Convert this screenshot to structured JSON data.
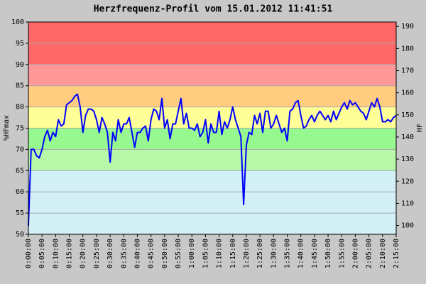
{
  "chart_data": {
    "type": "line",
    "title": "Herzfrequenz-Profil vom 15.01.2012 11:41:51",
    "ylabel": "%HFmax",
    "y2label": "HF",
    "xlim": [
      0,
      135
    ],
    "ylim": [
      50,
      100
    ],
    "y2lim": [
      96,
      192
    ],
    "yticks": [
      50,
      55,
      60,
      65,
      70,
      75,
      80,
      85,
      90,
      95,
      100
    ],
    "y2ticks": [
      100,
      110,
      120,
      130,
      140,
      150,
      160,
      170,
      180,
      190
    ],
    "grid": true,
    "zones": [
      {
        "from": 50,
        "to": 65,
        "color": "#d2f0f6"
      },
      {
        "from": 65,
        "to": 70,
        "color": "#b6f8a8"
      },
      {
        "from": 70,
        "to": 75,
        "color": "#98f890"
      },
      {
        "from": 75,
        "to": 80,
        "color": "#ffff98"
      },
      {
        "from": 80,
        "to": 85,
        "color": "#ffcc80"
      },
      {
        "from": 85,
        "to": 90,
        "color": "#ff9898"
      },
      {
        "from": 90,
        "to": 100,
        "color": "#ff6868"
      }
    ],
    "xticks": [
      {
        "value": 0,
        "label": "0:00:00"
      },
      {
        "value": 5,
        "label": "0:05:00"
      },
      {
        "value": 10,
        "label": "0:10:00"
      },
      {
        "value": 15,
        "label": "0:15:00"
      },
      {
        "value": 20,
        "label": "0:20:00"
      },
      {
        "value": 25,
        "label": "0:25:00"
      },
      {
        "value": 30,
        "label": "0:30:00"
      },
      {
        "value": 35,
        "label": "0:35:00"
      },
      {
        "value": 40,
        "label": "0:40:00"
      },
      {
        "value": 45,
        "label": "0:45:00"
      },
      {
        "value": 50,
        "label": "0:50:00"
      },
      {
        "value": 55,
        "label": "0:55:00"
      },
      {
        "value": 60,
        "label": "1:00:00"
      },
      {
        "value": 65,
        "label": "1:05:00"
      },
      {
        "value": 70,
        "label": "1:10:00"
      },
      {
        "value": 75,
        "label": "1:15:00"
      },
      {
        "value": 80,
        "label": "1:20:00"
      },
      {
        "value": 85,
        "label": "1:25:00"
      },
      {
        "value": 90,
        "label": "1:30:00"
      },
      {
        "value": 95,
        "label": "1:35:00"
      },
      {
        "value": 100,
        "label": "1:40:00"
      },
      {
        "value": 105,
        "label": "1:45:00"
      },
      {
        "value": 110,
        "label": "1:50:00"
      },
      {
        "value": 115,
        "label": "1:55:00"
      },
      {
        "value": 120,
        "label": "2:00:00"
      },
      {
        "value": 125,
        "label": "2:05:00"
      },
      {
        "value": 130,
        "label": "2:10:00"
      },
      {
        "value": 135,
        "label": "2:15:00"
      }
    ],
    "x": [
      0,
      1,
      2,
      3,
      4,
      5,
      6,
      7,
      8,
      9,
      10,
      11,
      12,
      13,
      14,
      15,
      16,
      17,
      18,
      19,
      20,
      21,
      22,
      23,
      24,
      25,
      26,
      27,
      28,
      29,
      30,
      31,
      32,
      33,
      34,
      35,
      36,
      37,
      38,
      39,
      40,
      41,
      42,
      43,
      44,
      45,
      46,
      47,
      48,
      49,
      50,
      51,
      52,
      53,
      54,
      55,
      56,
      57,
      58,
      59,
      60,
      61,
      62,
      63,
      64,
      65,
      66,
      67,
      68,
      69,
      70,
      71,
      72,
      73,
      74,
      75,
      76,
      77,
      78,
      79,
      80,
      81,
      82,
      83,
      84,
      85,
      86,
      87,
      88,
      89,
      90,
      91,
      92,
      93,
      94,
      95,
      96,
      97,
      98,
      99,
      100,
      101,
      102,
      103,
      104,
      105,
      106,
      107,
      108,
      109,
      110,
      111,
      112,
      113,
      114,
      115,
      116,
      117,
      118,
      119,
      120,
      121,
      122,
      123,
      124,
      125,
      126,
      127,
      128,
      129,
      130,
      131,
      132,
      133,
      134,
      135
    ],
    "series": [
      {
        "color": "#0000ff",
        "values": [
          52,
          70,
          70,
          68.5,
          68,
          70,
          73,
          74.5,
          72,
          74,
          73,
          77,
          75.5,
          76,
          80.5,
          81,
          81.5,
          82.5,
          83,
          80,
          74,
          78,
          79.5,
          79.5,
          79,
          77,
          74,
          77.5,
          76,
          74,
          67,
          74,
          72,
          77,
          74,
          76,
          76,
          77.5,
          74,
          70.5,
          74,
          74,
          75,
          75.5,
          72,
          77,
          79.5,
          79,
          77,
          82,
          75,
          77,
          72.5,
          76,
          76,
          79,
          82,
          76,
          78.5,
          75,
          75,
          74.5,
          76,
          73,
          74,
          77,
          71.5,
          76,
          74,
          74,
          79,
          73.5,
          76.5,
          75,
          77,
          80,
          77,
          75,
          73,
          57,
          71,
          74,
          73.5,
          78,
          76,
          78.5,
          74,
          79,
          79,
          75,
          76,
          78,
          76,
          74,
          75,
          72,
          79,
          79.5,
          81,
          81.5,
          78,
          75,
          75.5,
          77,
          78,
          76.5,
          78,
          79,
          78,
          77,
          78,
          76.5,
          79,
          77,
          78.5,
          80,
          81,
          79.5,
          81.5,
          80.5,
          81,
          80,
          79,
          78.5,
          77,
          79,
          81,
          80,
          82,
          80,
          76.5,
          76.5,
          77,
          76.5,
          77.5,
          78
        ]
      }
    ]
  }
}
